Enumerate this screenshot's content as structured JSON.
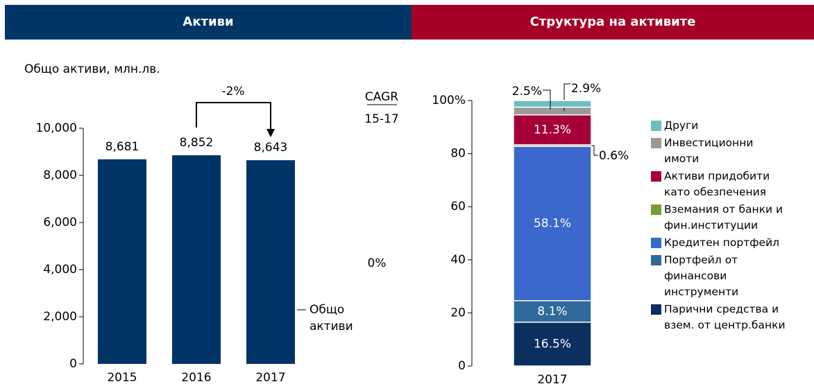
{
  "header": {
    "left": "Активи",
    "right": "Структура на активите"
  },
  "chart_data": [
    {
      "type": "bar",
      "title": "Общо активи, млн.лв.",
      "categories": [
        "2015",
        "2016",
        "2017"
      ],
      "series": [
        {
          "name": "Общо активи",
          "color": "#003366",
          "values": [
            8681,
            8852,
            8643
          ],
          "value_labels": [
            "8,681",
            "8,852",
            "8,643"
          ]
        }
      ],
      "ylim": [
        0,
        10000
      ],
      "yticks": [
        0,
        {
          "value": 2000,
          "label": "2,000"
        },
        {
          "value": 4000,
          "label": "4,000"
        },
        {
          "value": 6000,
          "label": "6,000"
        },
        {
          "value": 8000,
          "label": "8,000"
        },
        {
          "value": 10000,
          "label": "10,000"
        }
      ],
      "annotations": [
        "-2%",
        "CAGR",
        "15-17",
        "0%"
      ]
    },
    {
      "type": "bar",
      "stacked": true,
      "categories": [
        "2017"
      ],
      "series": [
        {
          "name": "Парични средства и взем. от центр.банки",
          "color": "#0b2f5e",
          "values": [
            16.5
          ],
          "value_labels": [
            "16.5%"
          ]
        },
        {
          "name": "Портфейл от финансови инструменти",
          "color": "#2f6a9b",
          "values": [
            8.1
          ],
          "value_labels": [
            "8.1%"
          ]
        },
        {
          "name": "Кредитен портфейл",
          "color": "#3a68cc",
          "values": [
            58.1
          ],
          "value_labels": [
            "58.1%"
          ]
        },
        {
          "name": "Вземания от банки и фин.институции",
          "color": "#7a9a3a",
          "values": [
            0.6
          ],
          "value_labels": [
            "0.6%"
          ]
        },
        {
          "name": "Активи придобити като обезпечения",
          "color": "#a5003a",
          "values": [
            11.3
          ],
          "value_labels": [
            "11.3%"
          ]
        },
        {
          "name": "Инвестиционни имоти",
          "color": "#999999",
          "values": [
            2.9
          ],
          "value_labels": [
            "2.9%"
          ]
        },
        {
          "name": "Други",
          "color": "#6cbfbf",
          "values": [
            2.5
          ],
          "value_labels": [
            "2.5%"
          ]
        }
      ],
      "ylim": [
        0,
        100
      ],
      "yticks": [
        0,
        20,
        40,
        60,
        80,
        {
          "value": 100,
          "label": "100%"
        }
      ]
    }
  ]
}
